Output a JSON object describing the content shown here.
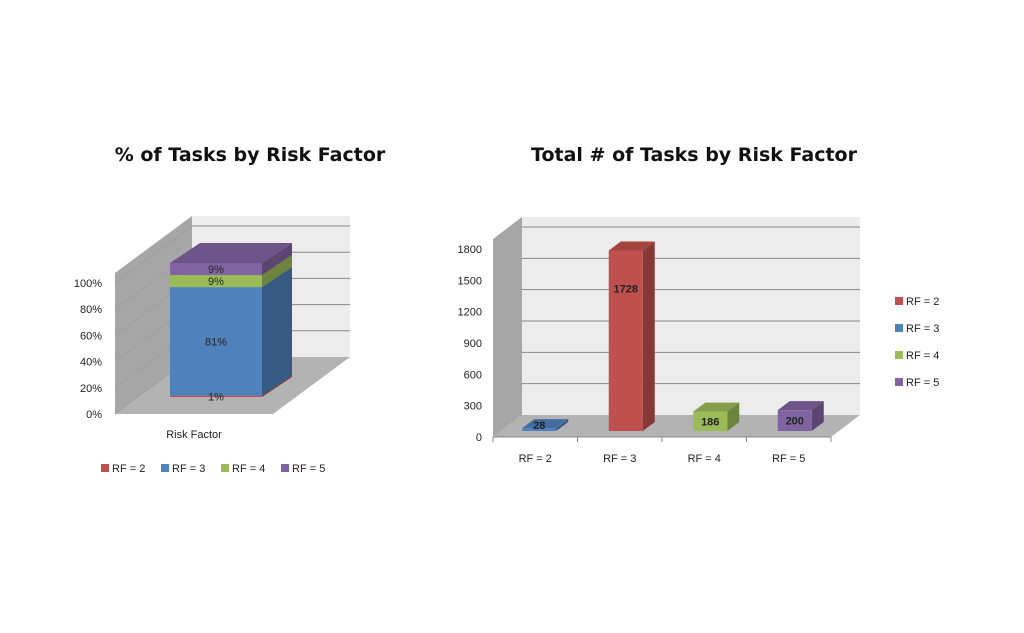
{
  "colors": {
    "RF = 2": "#c0504d",
    "RF = 3": "#4f81bd",
    "RF = 4": "#9bbb59",
    "RF = 5": "#8064a2"
  },
  "chart_data": [
    {
      "type": "bar",
      "stacked": true,
      "three_d": true,
      "title": "% of Tasks by Risk Factor",
      "xlabel": "",
      "ylabel": "",
      "categories": [
        "Risk Factor"
      ],
      "series": [
        {
          "name": "RF = 2",
          "values": [
            1
          ],
          "label": "1%"
        },
        {
          "name": "RF = 3",
          "values": [
            81
          ],
          "label": "81%"
        },
        {
          "name": "RF = 4",
          "values": [
            9
          ],
          "label": "9%"
        },
        {
          "name": "RF = 5",
          "values": [
            9
          ],
          "label": "9%"
        }
      ],
      "yticks": [
        "0%",
        "20%",
        "40%",
        "60%",
        "80%",
        "100%"
      ],
      "ylim": [
        0,
        100
      ],
      "grid": true,
      "legend": "bottom"
    },
    {
      "type": "bar",
      "three_d": true,
      "title": "Total # of Tasks by Risk Factor",
      "xlabel": "",
      "ylabel": "",
      "categories": [
        "RF = 2",
        "RF = 3",
        "RF = 4",
        "RF = 5"
      ],
      "values": [
        28,
        1728,
        186,
        200
      ],
      "colors": [
        "#4f81bd",
        "#c0504d",
        "#9bbb59",
        "#8064a2"
      ],
      "yticks": [
        "0",
        "300",
        "600",
        "900",
        "1200",
        "1500",
        "1800"
      ],
      "ylim": [
        0,
        1800
      ],
      "grid": true,
      "legend": "right",
      "legend_entries": [
        "RF = 2",
        "RF = 3",
        "RF = 4",
        "RF = 5"
      ]
    }
  ]
}
